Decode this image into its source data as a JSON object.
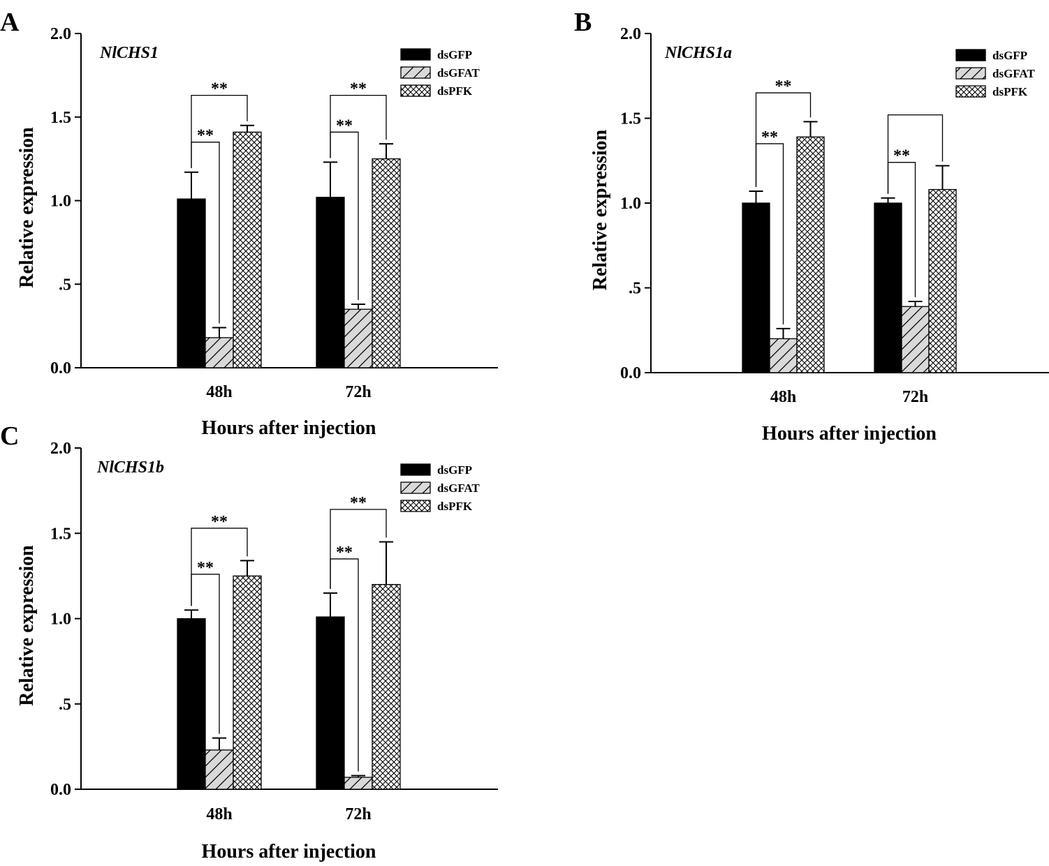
{
  "figure": {
    "colors": {
      "ink": "#000000",
      "solid": "#000000",
      "hatch_bg": "#d9d9d9",
      "cross_bg": "#ffffff"
    },
    "legend": [
      {
        "label": "dsGFP",
        "pattern": "solid"
      },
      {
        "label": "dsGFAT",
        "pattern": "hatch"
      },
      {
        "label": "dsPFK",
        "pattern": "crosshatch"
      }
    ]
  },
  "chart_data": [
    {
      "type": "bar",
      "panel": "A",
      "gene": "NlCHS1",
      "title": "",
      "xlabel": "Hours after injection",
      "ylabel": "Relative expression",
      "ylim": [
        0,
        2.0
      ],
      "yticks": [
        "0.0",
        ".5",
        "1.0",
        "1.5",
        "2.0"
      ],
      "categories": [
        "48h",
        "72h"
      ],
      "series": [
        {
          "name": "dsGFP",
          "values": [
            1.01,
            1.02
          ],
          "errors": [
            0.16,
            0.21
          ]
        },
        {
          "name": "dsGFAT",
          "values": [
            0.18,
            0.35
          ],
          "errors": [
            0.06,
            0.03
          ]
        },
        {
          "name": "dsPFK",
          "values": [
            1.41,
            1.25
          ],
          "errors": [
            0.04,
            0.09
          ]
        }
      ],
      "significance": [
        {
          "category": 0,
          "from": 0,
          "to": 1,
          "label": "**",
          "y": 1.35
        },
        {
          "category": 0,
          "from": 0,
          "to": 2,
          "label": "**",
          "y": 1.63
        },
        {
          "category": 1,
          "from": 0,
          "to": 1,
          "label": "**",
          "y": 1.41
        },
        {
          "category": 1,
          "from": 0,
          "to": 2,
          "label": "**",
          "y": 1.63
        }
      ]
    },
    {
      "type": "bar",
      "panel": "B",
      "gene": "NlCHS1a",
      "title": "",
      "xlabel": "Hours after injection",
      "ylabel": "Relative expression",
      "ylim": [
        0,
        2.0
      ],
      "yticks": [
        "0.0",
        ".5",
        "1.0",
        "1.5",
        "2.0"
      ],
      "categories": [
        "48h",
        "72h"
      ],
      "series": [
        {
          "name": "dsGFP",
          "values": [
            1.0,
            1.0
          ],
          "errors": [
            0.07,
            0.03
          ]
        },
        {
          "name": "dsGFAT",
          "values": [
            0.2,
            0.39
          ],
          "errors": [
            0.06,
            0.03
          ]
        },
        {
          "name": "dsPFK",
          "values": [
            1.39,
            1.08
          ],
          "errors": [
            0.09,
            0.14
          ]
        }
      ],
      "significance": [
        {
          "category": 0,
          "from": 0,
          "to": 1,
          "label": "**",
          "y": 1.35
        },
        {
          "category": 0,
          "from": 0,
          "to": 2,
          "label": "**",
          "y": 1.65
        },
        {
          "category": 1,
          "from": 0,
          "to": 1,
          "label": "**",
          "y": 1.24
        },
        {
          "category": 1,
          "from": 0,
          "to": 2,
          "label": "",
          "y": 1.52
        }
      ]
    },
    {
      "type": "bar",
      "panel": "C",
      "gene": "NlCHS1b",
      "title": "",
      "xlabel": "Hours after injection",
      "ylabel": "Relative expression",
      "ylim": [
        0,
        2.0
      ],
      "yticks": [
        "0.0",
        ".5",
        "1.0",
        "1.5",
        "2.0"
      ],
      "categories": [
        "48h",
        "72h"
      ],
      "series": [
        {
          "name": "dsGFP",
          "values": [
            1.0,
            1.01
          ],
          "errors": [
            0.05,
            0.14
          ]
        },
        {
          "name": "dsGFAT",
          "values": [
            0.23,
            0.07
          ],
          "errors": [
            0.07,
            0.01
          ]
        },
        {
          "name": "dsPFK",
          "values": [
            1.25,
            1.2
          ],
          "errors": [
            0.09,
            0.25
          ]
        }
      ],
      "significance": [
        {
          "category": 0,
          "from": 0,
          "to": 1,
          "label": "**",
          "y": 1.26
        },
        {
          "category": 0,
          "from": 0,
          "to": 2,
          "label": "**",
          "y": 1.53
        },
        {
          "category": 1,
          "from": 0,
          "to": 1,
          "label": "**",
          "y": 1.35
        },
        {
          "category": 1,
          "from": 0,
          "to": 2,
          "label": "**",
          "y": 1.64
        }
      ]
    }
  ]
}
